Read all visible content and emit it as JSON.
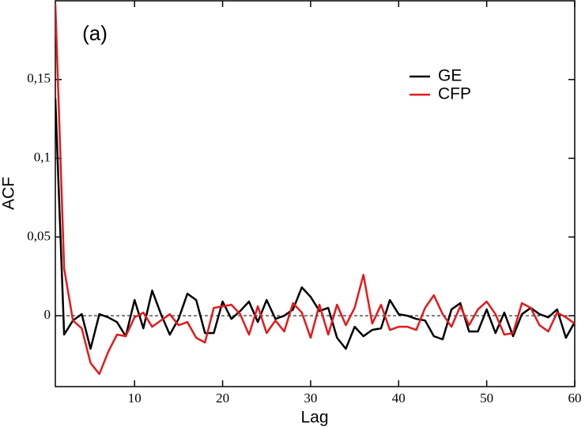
{
  "chart_data": {
    "type": "line",
    "annotation": "(a)",
    "x_label": "Lag",
    "y_label": "ACF",
    "x": [
      1,
      2,
      3,
      4,
      5,
      6,
      7,
      8,
      9,
      10,
      11,
      12,
      13,
      14,
      15,
      16,
      17,
      18,
      19,
      20,
      21,
      22,
      23,
      24,
      25,
      26,
      27,
      28,
      29,
      30,
      31,
      32,
      33,
      34,
      35,
      36,
      37,
      38,
      39,
      40,
      41,
      42,
      43,
      44,
      45,
      46,
      47,
      48,
      49,
      50,
      51,
      52,
      53,
      54,
      55,
      56,
      57,
      58,
      59,
      60
    ],
    "series": [
      {
        "name": "GE",
        "color": "#000000",
        "values": [
          0.138,
          -0.012,
          -0.003,
          0.001,
          -0.021,
          0.001,
          -0.001,
          -0.004,
          -0.013,
          0.01,
          -0.008,
          0.016,
          0.001,
          -0.012,
          -0.002,
          0.014,
          0.01,
          -0.011,
          -0.011,
          0.009,
          -0.002,
          0.003,
          0.009,
          -0.004,
          0.01,
          -0.002,
          0.0,
          0.004,
          0.018,
          0.012,
          0.003,
          0.005,
          -0.014,
          -0.021,
          -0.007,
          -0.013,
          -0.009,
          -0.008,
          0.01,
          0.001,
          0.0,
          -0.002,
          -0.003,
          -0.013,
          -0.015,
          0.004,
          0.008,
          -0.01,
          -0.01,
          0.004,
          -0.011,
          0.002,
          -0.013,
          0.001,
          0.005,
          0.001,
          -0.001,
          0.004,
          -0.014,
          -0.004
        ]
      },
      {
        "name": "CFP",
        "color": "#e41a1c",
        "values": [
          0.198,
          0.03,
          -0.003,
          -0.008,
          -0.03,
          -0.037,
          -0.023,
          -0.012,
          -0.013,
          -0.001,
          0.002,
          -0.007,
          -0.003,
          0.001,
          -0.006,
          -0.004,
          -0.014,
          -0.017,
          0.005,
          0.006,
          0.007,
          0.001,
          -0.012,
          0.006,
          -0.011,
          -0.003,
          -0.01,
          0.008,
          0.002,
          -0.014,
          0.007,
          -0.012,
          0.007,
          -0.006,
          0.005,
          0.026,
          -0.005,
          0.007,
          -0.009,
          -0.007,
          -0.007,
          -0.009,
          0.005,
          0.013,
          0.001,
          -0.007,
          0.006,
          -0.006,
          0.004,
          0.009,
          0.001,
          -0.012,
          -0.011,
          0.008,
          0.005,
          -0.006,
          -0.01,
          0.002,
          -0.001,
          -0.005
        ]
      }
    ],
    "reference_line": 0,
    "xlim": [
      1,
      60
    ],
    "xticks": [
      10,
      20,
      30,
      40,
      50,
      60
    ],
    "ylim": [
      -0.045,
      0.2
    ],
    "yticks": [
      0,
      {
        "value": 0.05,
        "label": "0,05"
      },
      {
        "value": 0.1,
        "label": "0,1"
      },
      {
        "value": 0.15,
        "label": "0,15"
      }
    ],
    "legend": "upper right"
  }
}
